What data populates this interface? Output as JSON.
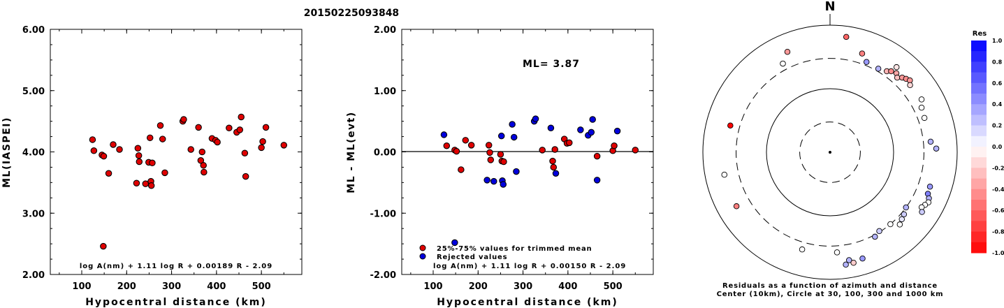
{
  "title": "20150225093848",
  "chart_data": [
    {
      "type": "scatter",
      "id": "ml-vs-distance",
      "ylabel": "ML(IASPEI)",
      "xlabel": "Hypocentral distance (km)",
      "xlim": [
        30,
        590
      ],
      "ylim": [
        2.0,
        6.0
      ],
      "x_ticks": [
        "100",
        "200",
        "300",
        "400",
        "500"
      ],
      "y_ticks": [
        "2.00",
        "3.00",
        "4.00",
        "5.00",
        "6.00"
      ],
      "formula": "log A(nm) + 1.11 log R + 0.00189 R - 2.09",
      "points": [
        [
          124,
          4.2
        ],
        [
          127,
          4.02
        ],
        [
          145,
          3.95
        ],
        [
          149,
          3.93
        ],
        [
          160,
          3.65
        ],
        [
          170,
          4.12
        ],
        [
          184,
          4.04
        ],
        [
          222,
          3.49
        ],
        [
          225,
          4.06
        ],
        [
          227,
          3.94
        ],
        [
          228,
          3.84
        ],
        [
          242,
          3.48
        ],
        [
          249,
          3.83
        ],
        [
          252,
          4.23
        ],
        [
          254,
          3.52
        ],
        [
          255,
          3.45
        ],
        [
          257,
          3.82
        ],
        [
          275,
          4.43
        ],
        [
          280,
          4.21
        ],
        [
          285,
          3.66
        ],
        [
          325,
          4.5
        ],
        [
          327,
          4.53
        ],
        [
          343,
          4.04
        ],
        [
          360,
          4.4
        ],
        [
          365,
          3.86
        ],
        [
          368,
          4.0
        ],
        [
          371,
          3.78
        ],
        [
          372,
          3.67
        ],
        [
          390,
          4.22
        ],
        [
          398,
          4.19
        ],
        [
          402,
          4.16
        ],
        [
          428,
          4.39
        ],
        [
          445,
          4.32
        ],
        [
          452,
          4.36
        ],
        [
          455,
          4.57
        ],
        [
          463,
          3.98
        ],
        [
          465,
          3.6
        ],
        [
          500,
          4.07
        ],
        [
          503,
          4.17
        ],
        [
          510,
          4.4
        ],
        [
          550,
          4.11
        ],
        [
          148,
          2.46
        ]
      ],
      "point_color": "#e00000"
    },
    {
      "type": "scatter",
      "id": "residual-vs-distance",
      "ylabel": "ML - ML(evt)",
      "xlabel": "Hypocentral distance (km)",
      "xlim": [
        30,
        590
      ],
      "ylim": [
        -2.0,
        2.0
      ],
      "x_ticks": [
        "100",
        "200",
        "300",
        "400",
        "500"
      ],
      "y_ticks": [
        "-2.00",
        "-1.00",
        "0.00",
        "1.00",
        "2.00"
      ],
      "ml_label": "ML= 3.87",
      "formula": "log A(nm) + 1.11 log R + 0.00150 R - 2.09",
      "legend": [
        {
          "label": "25%-75% values for trimmed mean",
          "color": "#e00000"
        },
        {
          "label": "Rejected values",
          "color": "#0000dd"
        }
      ],
      "series": [
        {
          "name": "25%-75% values for trimmed mean",
          "color": "#e00000",
          "points": [
            [
              130,
              0.1
            ],
            [
              148,
              0.03
            ],
            [
              152,
              0.01
            ],
            [
              162,
              -0.29
            ],
            [
              172,
              0.19
            ],
            [
              185,
              0.11
            ],
            [
              224,
              0.11
            ],
            [
              226,
              -0.01
            ],
            [
              228,
              -0.13
            ],
            [
              250,
              -0.04
            ],
            [
              253,
              -0.15
            ],
            [
              257,
              -0.16
            ],
            [
              343,
              0.03
            ],
            [
              366,
              -0.15
            ],
            [
              368,
              -0.25
            ],
            [
              371,
              0.04
            ],
            [
              392,
              0.21
            ],
            [
              398,
              0.14
            ],
            [
              403,
              0.15
            ],
            [
              465,
              -0.07
            ],
            [
              500,
              0.02
            ],
            [
              503,
              0.1
            ],
            [
              550,
              0.03
            ]
          ]
        },
        {
          "name": "Rejected values",
          "color": "#0000dd",
          "points": [
            [
              124,
              0.28
            ],
            [
              220,
              -0.46
            ],
            [
              235,
              -0.48
            ],
            [
              252,
              0.26
            ],
            [
              254,
              -0.47
            ],
            [
              256,
              -0.53
            ],
            [
              276,
              0.45
            ],
            [
              280,
              0.24
            ],
            [
              285,
              -0.32
            ],
            [
              325,
              0.5
            ],
            [
              328,
              0.54
            ],
            [
              362,
              0.39
            ],
            [
              373,
              -0.35
            ],
            [
              428,
              0.36
            ],
            [
              445,
              0.27
            ],
            [
              452,
              0.32
            ],
            [
              455,
              0.53
            ],
            [
              465,
              -0.46
            ],
            [
              510,
              0.34
            ],
            [
              148,
              -1.48
            ]
          ]
        }
      ]
    },
    {
      "type": "polar-scatter",
      "id": "azimuth-residuals",
      "north_label": "N",
      "caption_line1": "Residuals as a function of azimuth and distance",
      "caption_line2": "Center (10km), Circle at 30, 100, 300 and 1000 km",
      "ring_distances_km": [
        30,
        100,
        300,
        1000
      ],
      "rings_dashed": [
        true,
        false,
        true,
        false
      ],
      "points": [
        {
          "az": 8,
          "dist": 680,
          "res": -0.6
        },
        {
          "az": 18,
          "dist": 430,
          "res": -0.5
        },
        {
          "az": 35,
          "dist": 360,
          "res": -0.3
        },
        {
          "az": 37,
          "dist": 395,
          "res": -0.45
        },
        {
          "az": 38,
          "dist": 500,
          "res": -0.1
        },
        {
          "az": 40,
          "dist": 420,
          "res": -0.35
        },
        {
          "az": 42,
          "dist": 380,
          "res": -0.25
        },
        {
          "az": 44,
          "dist": 430,
          "res": -0.4
        },
        {
          "az": 46,
          "dist": 460,
          "res": -0.45
        },
        {
          "az": 48,
          "dist": 490,
          "res": -0.4
        },
        {
          "az": 50,
          "dist": 440,
          "res": -0.15
        },
        {
          "az": 22,
          "dist": 340,
          "res": 0.4
        },
        {
          "az": 30,
          "dist": 330,
          "res": 0.3
        },
        {
          "az": 60,
          "dist": 460,
          "res": 0.0
        },
        {
          "az": 64,
          "dist": 400,
          "res": 0.0
        },
        {
          "az": 70,
          "dist": 380,
          "res": 0.0
        },
        {
          "az": 84,
          "dist": 390,
          "res": 0.3
        },
        {
          "az": 88,
          "dist": 470,
          "res": 0.3
        },
        {
          "az": 109,
          "dist": 460,
          "res": 0.4
        },
        {
          "az": 113,
          "dist": 470,
          "res": 0.5
        },
        {
          "az": 115,
          "dist": 520,
          "res": 0.3
        },
        {
          "az": 117,
          "dist": 545,
          "res": 0.0
        },
        {
          "az": 119,
          "dist": 510,
          "res": 0.0
        },
        {
          "az": 121,
          "dist": 480,
          "res": 0.0
        },
        {
          "az": 123,
          "dist": 530,
          "res": 0.2
        },
        {
          "az": 126,
          "dist": 300,
          "res": 0.3
        },
        {
          "az": 130,
          "dist": 330,
          "res": 0.2
        },
        {
          "az": 133,
          "dist": 350,
          "res": 0.1
        },
        {
          "az": 136,
          "dist": 380,
          "res": 0.0
        },
        {
          "az": 140,
          "dist": 300,
          "res": 0.0
        },
        {
          "az": 148,
          "dist": 290,
          "res": 0.2
        },
        {
          "az": 152,
          "dist": 320,
          "res": 0.3
        },
        {
          "az": 163,
          "dist": 560,
          "res": 0.4
        },
        {
          "az": 170,
          "dist": 530,
          "res": 0.3
        },
        {
          "az": 168,
          "dist": 600,
          "res": -0.2
        },
        {
          "az": 176,
          "dist": 380,
          "res": 0.0
        },
        {
          "az": 172,
          "dist": 610,
          "res": 0.3
        },
        {
          "az": 196,
          "dist": 390,
          "res": 0.0
        },
        {
          "az": 240,
          "dist": 500,
          "res": -0.5
        },
        {
          "az": 258,
          "dist": 500,
          "res": 0.0
        },
        {
          "az": 285,
          "dist": 420,
          "res": -1.0
        },
        {
          "az": 332,
          "dist": 380,
          "res": 0.0
        },
        {
          "az": 337,
          "dist": 520,
          "res": -0.4
        }
      ],
      "colorbar": {
        "title": "Res",
        "labels": [
          "1.0",
          "0.8",
          "0.6",
          "0.4",
          "0.2",
          "0.0",
          "-0.2",
          "-0.4",
          "-0.6",
          "-0.8",
          "-1.0"
        ]
      }
    }
  ]
}
